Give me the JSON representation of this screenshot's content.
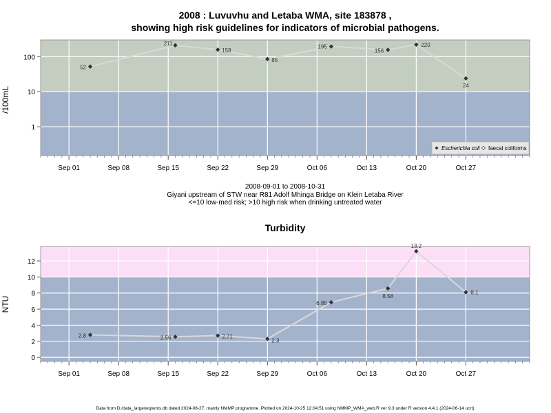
{
  "colors": {
    "panel1_upper_band": "#c3cec0",
    "panel1_lower_band": "#a4b3cc",
    "panel2_upper_band": "#fcdef6",
    "panel2_lower_band": "#a4b3cc",
    "gridline": "#ffffff",
    "series_line": "#d9d9d9",
    "point": "#333333",
    "axis": "#555555"
  },
  "chart_data": [
    {
      "type": "line",
      "title_line1": "2008 : Luvuvhu and Letaba WMA, site 183878 ,",
      "title_line2": "showing high risk guidelines for indicators of microbial pathogens.",
      "ylabel": "/100mL",
      "y_scale": "log",
      "ylim": [
        0.15,
        300
      ],
      "y_ticks": [
        1,
        10,
        100
      ],
      "y_tick_labels": [
        "1",
        "10",
        "100"
      ],
      "x_range": [
        "2008-08-28",
        "2008-11-05"
      ],
      "x_ticks": [
        "2008-09-01",
        "2008-09-08",
        "2008-09-15",
        "2008-09-22",
        "2008-09-29",
        "2008-10-06",
        "2008-10-13",
        "2008-10-20",
        "2008-10-27"
      ],
      "x_tick_labels": [
        "Sep 01",
        "Sep 08",
        "Sep 15",
        "Sep 22",
        "Sep 29",
        "Oct 06",
        "Oct 13",
        "Oct 20",
        "Oct 27"
      ],
      "guideline_band_boundary": 10,
      "grid": true,
      "legend_position": "bottom-right",
      "series": [
        {
          "name": "Escherichia coli",
          "marker": "filled-diamond",
          "x": [
            "2008-09-04",
            "2008-09-16",
            "2008-09-22",
            "2008-09-29",
            "2008-10-08",
            "2008-10-16",
            "2008-10-20",
            "2008-10-27"
          ],
          "values": [
            52,
            211,
            158,
            85,
            195,
            156,
            220,
            24
          ],
          "labels": [
            "52",
            "211",
            "158",
            "85",
            "195",
            "156",
            "220",
            "24"
          ]
        },
        {
          "name": "faecal coliforms",
          "marker": "open-diamond",
          "x": [],
          "values": [],
          "labels": []
        }
      ],
      "sub1": "2008-09-01 to 2008-10-31",
      "sub2": "Giyani upstream of STW near R81 Adolf Mhinga Bridge on Klein Letaba River",
      "sub3": "<=10 low-med risk; >10 high risk when drinking untreated water"
    },
    {
      "type": "line",
      "title": "Turbidity",
      "ylabel": "NTU",
      "ylim": [
        -0.5,
        13.8
      ],
      "y_ticks": [
        0,
        2,
        4,
        6,
        8,
        10,
        12
      ],
      "y_tick_labels": [
        "0",
        "2",
        "4",
        "6",
        "8",
        "10",
        "12"
      ],
      "x_range": [
        "2008-08-28",
        "2008-11-05"
      ],
      "x_ticks": [
        "2008-09-01",
        "2008-09-08",
        "2008-09-15",
        "2008-09-22",
        "2008-09-29",
        "2008-10-06",
        "2008-10-13",
        "2008-10-20",
        "2008-10-27"
      ],
      "x_tick_labels": [
        "Sep 01",
        "Sep 08",
        "Sep 15",
        "Sep 22",
        "Sep 29",
        "Oct 06",
        "Oct 13",
        "Oct 20",
        "Oct 27"
      ],
      "guideline_band_boundary": 10,
      "grid": true,
      "series": [
        {
          "x": [
            "2008-09-04",
            "2008-09-16",
            "2008-09-22",
            "2008-09-29",
            "2008-10-08",
            "2008-10-16",
            "2008-10-20",
            "2008-10-27"
          ],
          "values": [
            2.8,
            2.56,
            2.71,
            2.3,
            6.85,
            8.58,
            13.2,
            8.1
          ],
          "labels": [
            "2.8",
            "2.56",
            "2.71",
            "2.3",
            "6.85",
            "8.58",
            "13.2",
            "8.1"
          ]
        }
      ]
    }
  ],
  "footer": "Data from D:/data_large/wq/wms.db dated 2024-08-27, mainly NMMP programme. Plotted on 2024-10-25 12:04:51 using NMMP_WMA_web.R ver 9.3 under R version 4.4.1 (2024-06-14 ucrt)"
}
